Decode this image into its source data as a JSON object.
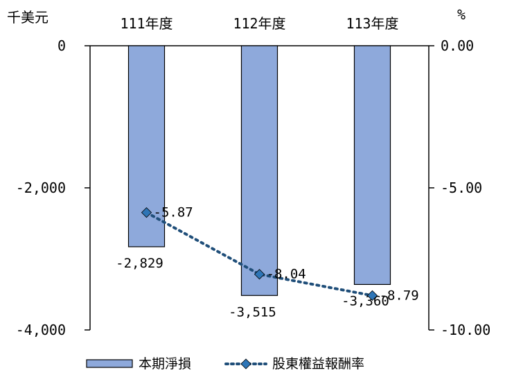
{
  "chart_data": {
    "type": "bar",
    "categories": [
      "111年度",
      "112年度",
      "113年度"
    ],
    "left_axis_unit": "千美元",
    "right_axis_unit": "%",
    "left_ylim": [
      -4000,
      0
    ],
    "right_ylim": [
      -10.0,
      0.0
    ],
    "left_ticks": [
      "0",
      "-2,000",
      "-4,000"
    ],
    "right_ticks": [
      "0.00",
      "-5.00",
      "-10.00"
    ],
    "left_tick_values": [
      0,
      -2000,
      -4000
    ],
    "right_tick_values": [
      0,
      -5,
      -10
    ],
    "series": [
      {
        "name": "本期淨損",
        "kind": "bar",
        "axis": "left",
        "values": [
          -2829,
          -3515,
          -3360
        ],
        "labels": [
          "-2,829",
          "-3,515",
          "-3,360"
        ],
        "color": "#8EA9DB"
      },
      {
        "name": "股東權益報酬率",
        "kind": "line",
        "axis": "right",
        "values": [
          -5.87,
          -8.04,
          -8.79
        ],
        "labels": [
          "-5.87",
          "-8.04",
          "-8.79"
        ],
        "color": "#1F4E79",
        "marker_color": "#2E75B6"
      }
    ],
    "legend_position": "bottom",
    "grid": false
  }
}
